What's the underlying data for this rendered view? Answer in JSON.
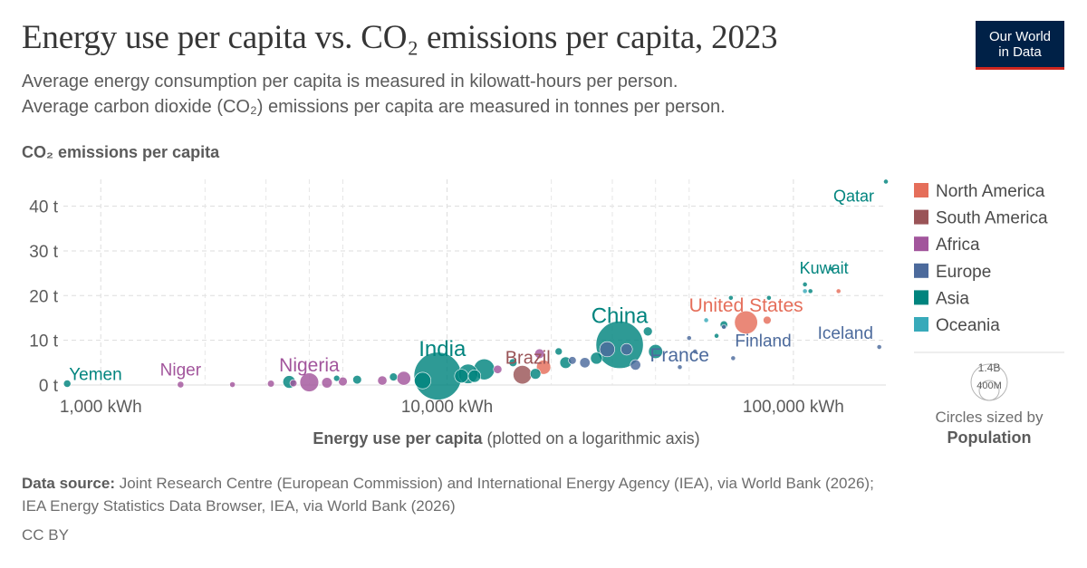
{
  "header": {
    "title": "Energy use per capita vs. CO₂ emissions per capita, 2023",
    "subtitle_line1": "Average energy consumption per capita is measured in kilowatt-hours per person.",
    "subtitle_line2": "Average carbon dioxide (CO₂) emissions per capita are measured in tonnes per person."
  },
  "logo": {
    "line1": "Our World",
    "line2": "in Data"
  },
  "chart_data": {
    "type": "scatter",
    "title": "Energy use per capita vs. CO₂ emissions per capita, 2023",
    "ylabel": "CO₂ emissions per capita",
    "xlabel_bold": "Energy use per capita",
    "xlabel_rest": "(plotted on a logarithmic axis)",
    "x_scale": "log",
    "xlim": [
      780,
      185000
    ],
    "ylim": [
      0,
      46
    ],
    "x_ticks": [
      {
        "value": 1000,
        "label": "1,000 kWh"
      },
      {
        "value": 10000,
        "label": "10,000 kWh"
      },
      {
        "value": 100000,
        "label": "100,000 kWh"
      }
    ],
    "y_ticks": [
      {
        "value": 0,
        "label": "0 t"
      },
      {
        "value": 10,
        "label": "10 t"
      },
      {
        "value": 20,
        "label": "20 t"
      },
      {
        "value": 30,
        "label": "30 t"
      },
      {
        "value": 40,
        "label": "40 t"
      }
    ],
    "grid": true,
    "legend_position": "right",
    "legend": [
      {
        "region": "North America",
        "color": "#e56e5a"
      },
      {
        "region": "South America",
        "color": "#9a5457"
      },
      {
        "region": "Africa",
        "color": "#a2559c"
      },
      {
        "region": "Europe",
        "color": "#4c6a9c"
      },
      {
        "region": "Asia",
        "color": "#00847e"
      },
      {
        "region": "Oceania",
        "color": "#38aaba"
      }
    ],
    "size_legend": {
      "large_label": "1.4B",
      "small_label": "400M",
      "caption_line1": "Circles sized by",
      "caption_line2": "Population"
    },
    "points": [
      {
        "label": "Qatar",
        "region": "Asia",
        "x": 185000,
        "y": 45.5,
        "pop": 3
      },
      {
        "label": "Kuwait",
        "region": "Asia",
        "x": 108000,
        "y": 22.5,
        "pop": 4
      },
      {
        "label": "United States",
        "region": "North America",
        "x": 73000,
        "y": 14,
        "pop": 335
      },
      {
        "label": "Iceland",
        "region": "Europe",
        "x": 177000,
        "y": 8.5,
        "pop": 0.4
      },
      {
        "label": "Finland",
        "region": "Europe",
        "x": 67000,
        "y": 6,
        "pop": 5.6
      },
      {
        "label": "China",
        "region": "Asia",
        "x": 31500,
        "y": 9,
        "pop": 1410
      },
      {
        "label": "France",
        "region": "Europe",
        "x": 35000,
        "y": 4.5,
        "pop": 68
      },
      {
        "label": "Brazil",
        "region": "South America",
        "x": 16500,
        "y": 2.3,
        "pop": 216
      },
      {
        "label": "India",
        "region": "Asia",
        "x": 9400,
        "y": 2.0,
        "pop": 1430
      },
      {
        "label": "Nigeria",
        "region": "Africa",
        "x": 4000,
        "y": 0.6,
        "pop": 223
      },
      {
        "label": "Niger",
        "region": "Africa",
        "x": 1700,
        "y": 0.1,
        "pop": 27
      },
      {
        "label": "Yemen",
        "region": "Asia",
        "x": 800,
        "y": 0.3,
        "pop": 34
      },
      {
        "label": "",
        "region": "North America",
        "x": 135000,
        "y": 21,
        "pop": 1
      },
      {
        "label": "",
        "region": "Oceania",
        "x": 56000,
        "y": 14.5,
        "pop": 2
      },
      {
        "label": "",
        "region": "North America",
        "x": 84000,
        "y": 14.5,
        "pop": 40
      },
      {
        "label": "",
        "region": "Europe",
        "x": 63000,
        "y": 13,
        "pop": 5.5
      },
      {
        "label": "",
        "region": "Asia",
        "x": 60000,
        "y": 11,
        "pop": 7
      },
      {
        "label": "",
        "region": "Asia",
        "x": 63000,
        "y": 13.5,
        "pop": 36
      },
      {
        "label": "",
        "region": "Asia",
        "x": 66000,
        "y": 19.5,
        "pop": 5
      },
      {
        "label": "",
        "region": "Asia",
        "x": 85000,
        "y": 19.5,
        "pop": 3
      },
      {
        "label": "",
        "region": "Asia",
        "x": 112000,
        "y": 21,
        "pop": 5
      },
      {
        "label": "",
        "region": "Asia",
        "x": 129000,
        "y": 26,
        "pop": 2
      },
      {
        "label": "",
        "region": "Oceania",
        "x": 108000,
        "y": 21,
        "pop": 2
      },
      {
        "label": "",
        "region": "Europe",
        "x": 50000,
        "y": 10.5,
        "pop": 5
      },
      {
        "label": "",
        "region": "Europe",
        "x": 52000,
        "y": 7.5,
        "pop": 10
      },
      {
        "label": "",
        "region": "Europe",
        "x": 47000,
        "y": 4,
        "pop": 9
      },
      {
        "label": "",
        "region": "Asia",
        "x": 38000,
        "y": 12,
        "pop": 51
      },
      {
        "label": "",
        "region": "Asia",
        "x": 40000,
        "y": 7.5,
        "pop": 125
      },
      {
        "label": "",
        "region": "Europe",
        "x": 33000,
        "y": 8,
        "pop": 84
      },
      {
        "label": "",
        "region": "Europe",
        "x": 29000,
        "y": 8,
        "pop": 144
      },
      {
        "label": "",
        "region": "Asia",
        "x": 27000,
        "y": 6,
        "pop": 89
      },
      {
        "label": "",
        "region": "Europe",
        "x": 25000,
        "y": 5,
        "pop": 67
      },
      {
        "label": "",
        "region": "Europe",
        "x": 23000,
        "y": 5.5,
        "pop": 38
      },
      {
        "label": "",
        "region": "Asia",
        "x": 22000,
        "y": 5,
        "pop": 85
      },
      {
        "label": "",
        "region": "Asia",
        "x": 21000,
        "y": 7.5,
        "pop": 33
      },
      {
        "label": "",
        "region": "North America",
        "x": 19000,
        "y": 4,
        "pop": 128
      },
      {
        "label": "",
        "region": "Africa",
        "x": 18500,
        "y": 7,
        "pop": 60
      },
      {
        "label": "",
        "region": "Asia",
        "x": 18000,
        "y": 2.5,
        "pop": 72
      },
      {
        "label": "",
        "region": "Asia",
        "x": 15500,
        "y": 5,
        "pop": 40
      },
      {
        "label": "",
        "region": "Africa",
        "x": 14000,
        "y": 3.5,
        "pop": 45
      },
      {
        "label": "",
        "region": "Asia",
        "x": 12800,
        "y": 3.5,
        "pop": 275
      },
      {
        "label": "",
        "region": "Asia",
        "x": 12000,
        "y": 2,
        "pop": 99
      },
      {
        "label": "",
        "region": "Asia",
        "x": 11500,
        "y": 2.5,
        "pop": 240
      },
      {
        "label": "",
        "region": "Asia",
        "x": 11000,
        "y": 2.0,
        "pop": 117
      },
      {
        "label": "",
        "region": "Asia",
        "x": 8500,
        "y": 1.0,
        "pop": 173
      },
      {
        "label": "",
        "region": "Africa",
        "x": 7500,
        "y": 1.5,
        "pop": 120
      },
      {
        "label": "",
        "region": "Asia",
        "x": 7000,
        "y": 1.8,
        "pop": 40
      },
      {
        "label": "",
        "region": "Africa",
        "x": 6500,
        "y": 1.0,
        "pop": 55
      },
      {
        "label": "",
        "region": "Asia",
        "x": 5500,
        "y": 1.2,
        "pop": 48
      },
      {
        "label": "",
        "region": "Africa",
        "x": 5000,
        "y": 0.8,
        "pop": 50
      },
      {
        "label": "",
        "region": "Asia",
        "x": 4800,
        "y": 1.5,
        "pop": 24
      },
      {
        "label": "",
        "region": "Africa",
        "x": 4500,
        "y": 0.5,
        "pop": 70
      },
      {
        "label": "",
        "region": "Africa",
        "x": 3600,
        "y": 0.4,
        "pop": 32
      },
      {
        "label": "",
        "region": "Asia",
        "x": 3500,
        "y": 0.7,
        "pop": 100
      },
      {
        "label": "",
        "region": "Africa",
        "x": 3100,
        "y": 0.3,
        "pop": 30
      },
      {
        "label": "",
        "region": "Africa",
        "x": 2400,
        "y": 0.1,
        "pop": 20
      }
    ]
  },
  "footer": {
    "source_label": "Data source:",
    "source_line1": "Joint Research Centre (European Commission) and International Energy Agency (IEA), via World Bank (2026);",
    "source_line2": "IEA Energy Statistics Data Browser, IEA, via World Bank (2026)",
    "license": "CC BY"
  }
}
